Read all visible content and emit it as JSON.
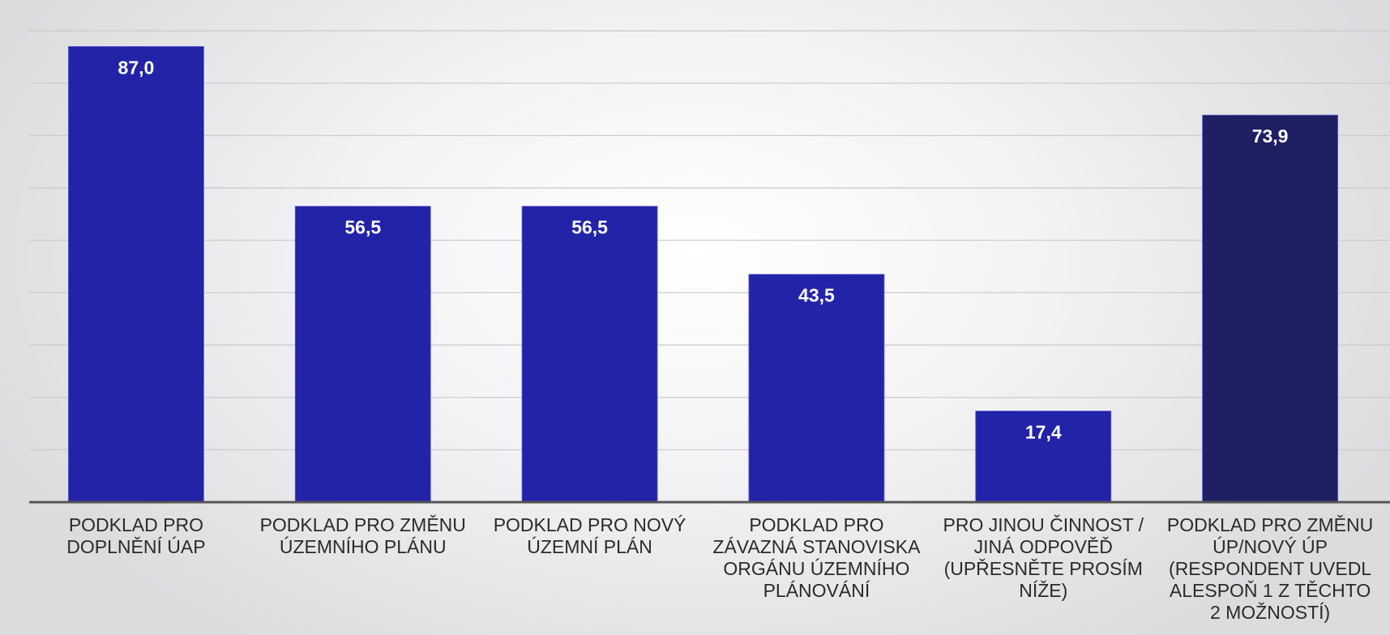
{
  "chart_data": {
    "type": "bar",
    "categories": [
      [
        "PODKLAD PRO",
        "DOPLNĚNÍ ÚAP"
      ],
      [
        "PODKLAD PRO ZMĚNU",
        "ÚZEMNÍHO PLÁNU"
      ],
      [
        "PODKLAD PRO NOVÝ",
        "ÚZEMNÍ PLÁN"
      ],
      [
        "PODKLAD PRO",
        "ZÁVAZNÁ STANOVISKA",
        "ORGÁNU ÚZEMNÍHO",
        "PLÁNOVÁNÍ"
      ],
      [
        "PRO JINOU ČINNOST /",
        "JINÁ ODPOVĚĎ",
        "(UPŘESNĚTE PROSÍM",
        "NÍŽE)"
      ],
      [
        "PODKLAD PRO ZMĚNU",
        "ÚP/NOVÝ ÚP",
        "(RESPONDENT UVEDL",
        "ALESPOŇ 1 Z TĚCHTO",
        "2 MOŽNOSTÍ)"
      ]
    ],
    "values": [
      87.0,
      56.5,
      56.5,
      43.5,
      17.4,
      73.9
    ],
    "value_labels": [
      "87,0",
      "56,5",
      "56,5",
      "43,5",
      "17,4",
      "73,9"
    ],
    "bar_colors": [
      "#2323a8",
      "#2323a8",
      "#2323a8",
      "#2323a8",
      "#2323a8",
      "#1f1f63"
    ],
    "ylim": [
      0,
      90
    ],
    "gridlines": [
      10,
      20,
      30,
      40,
      50,
      60,
      70,
      80,
      90
    ],
    "grid": true,
    "title": "",
    "xlabel": "",
    "ylabel": ""
  }
}
